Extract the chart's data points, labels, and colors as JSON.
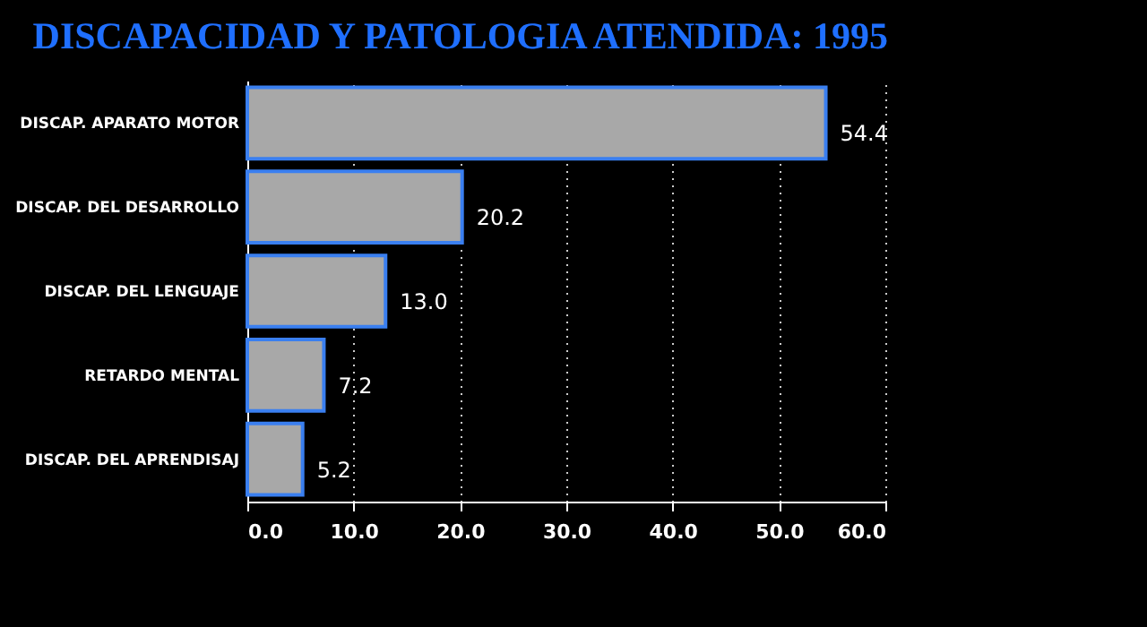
{
  "chart_data": {
    "type": "bar",
    "orientation": "horizontal",
    "title": "DISCAPACIDAD Y PATOLOGIA ATENDIDA: 1995",
    "categories": [
      "DISCAP. APARATO MOTOR",
      "DISCAP. DEL DESARROLLO",
      "DISCAP. DEL LENGUAJE",
      "RETARDO MENTAL",
      "DISCAP. DEL APRENDISAJ"
    ],
    "values": [
      54.4,
      20.2,
      13.0,
      7.2,
      5.2
    ],
    "value_labels": [
      "54.4",
      "20.2",
      "13.0",
      "7.2",
      "5.2"
    ],
    "color": "#a8a8a8",
    "xlim": [
      0,
      60
    ],
    "xticks": [
      {
        "value": 0,
        "label": "0.0"
      },
      {
        "value": 10,
        "label": "10.0"
      },
      {
        "value": 20,
        "label": "20.0"
      },
      {
        "value": 30,
        "label": "30.0"
      },
      {
        "value": 40,
        "label": "40.0"
      },
      {
        "value": 50,
        "label": "50.0"
      },
      {
        "value": 60,
        "label": "60.0"
      }
    ],
    "grid": "x"
  }
}
